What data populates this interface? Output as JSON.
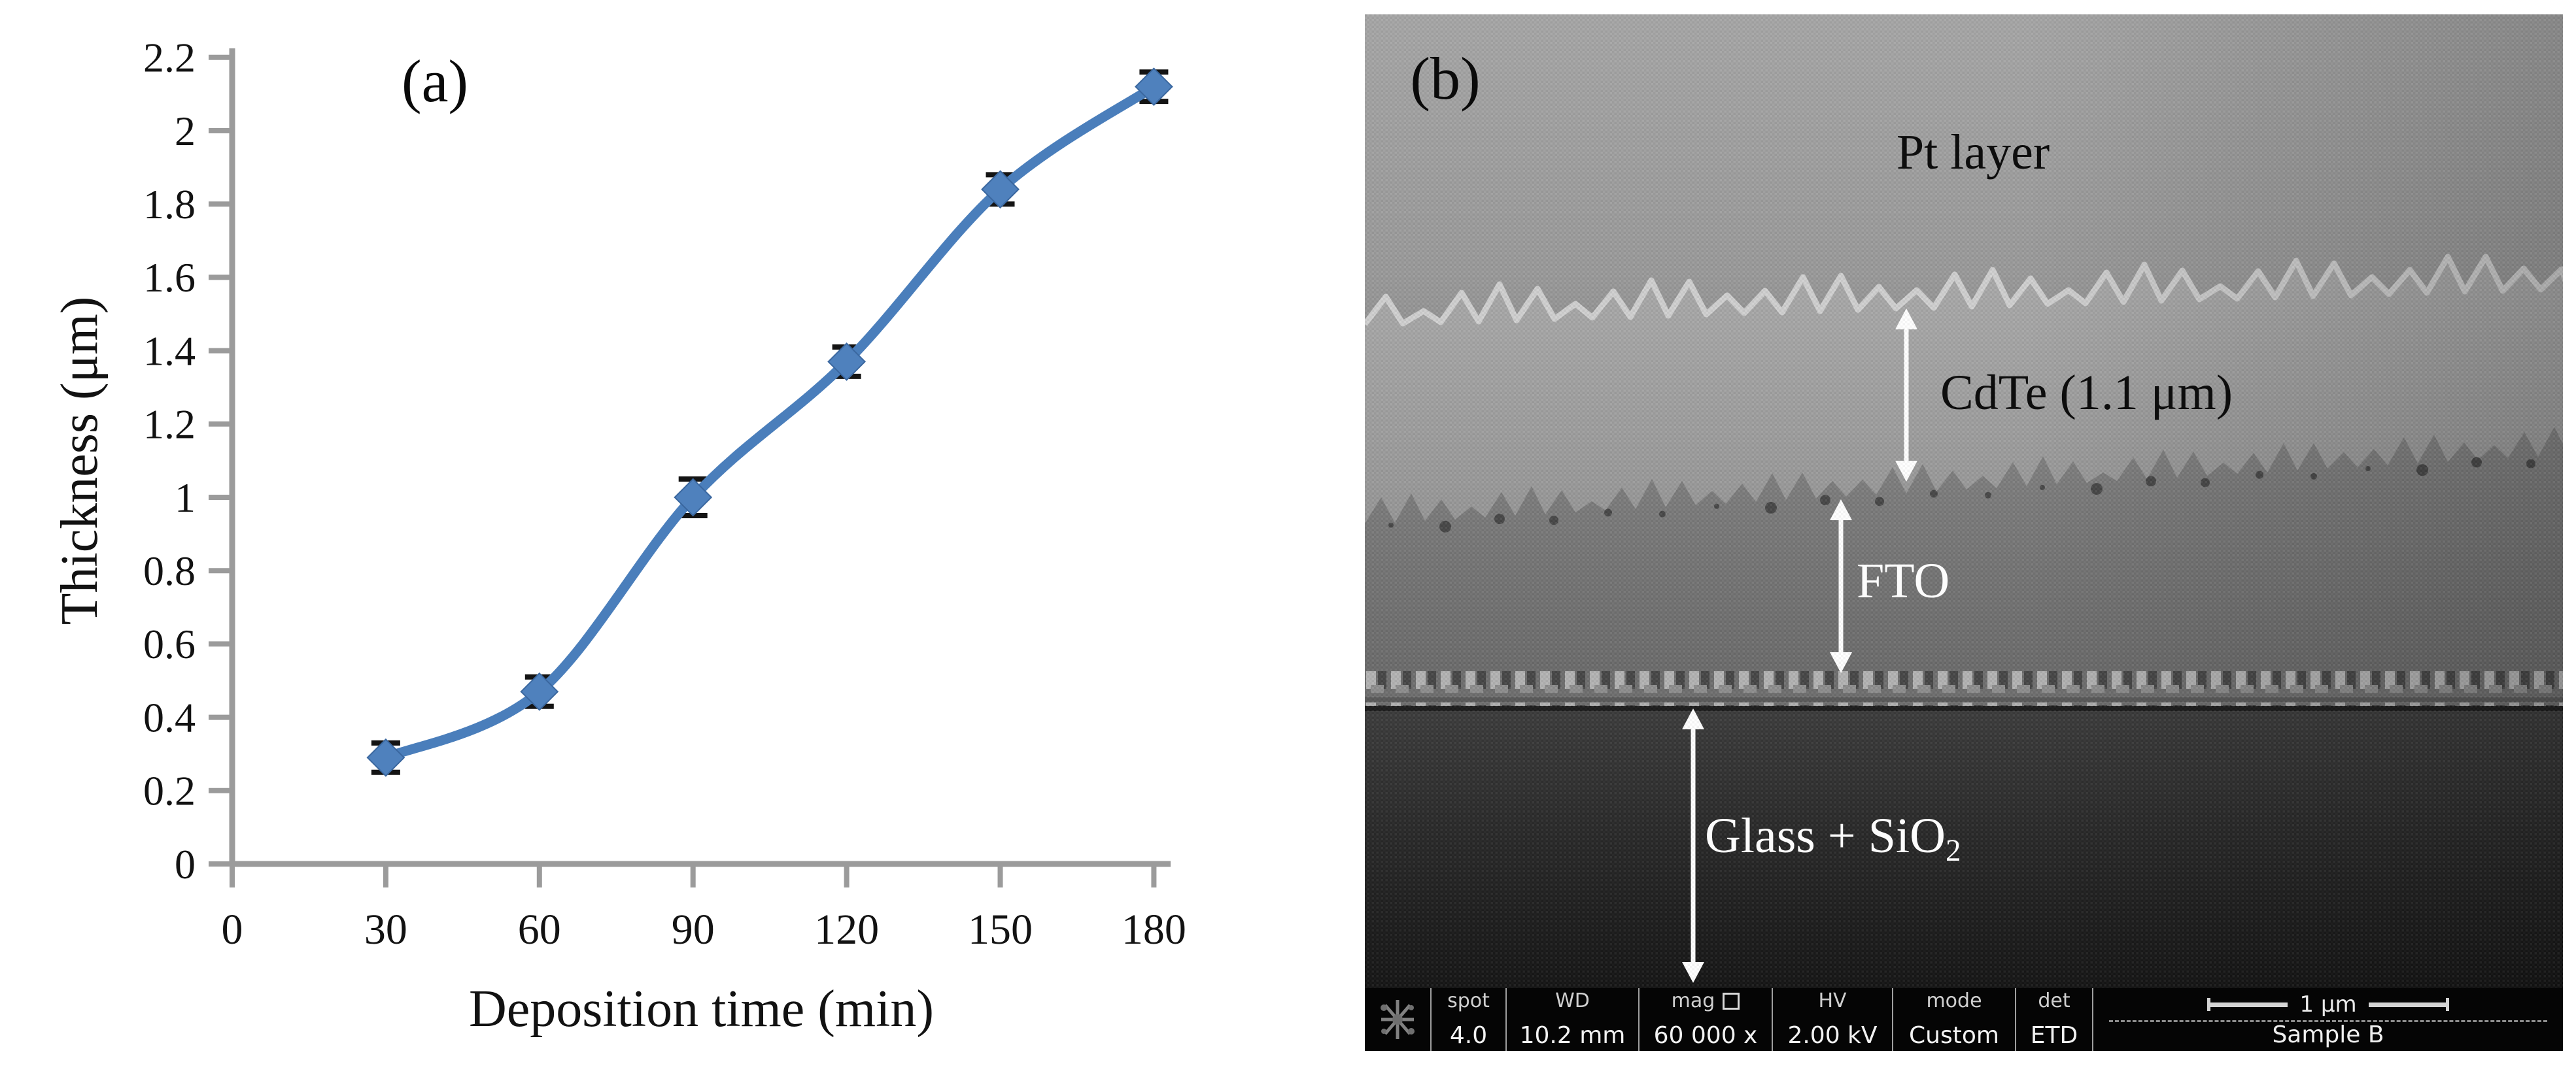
{
  "figure": {
    "panel_a_label": "(a)",
    "panel_b_label": "(b)"
  },
  "chart_data": {
    "type": "line",
    "title": "",
    "xlabel": "Deposition time (min)",
    "ylabel": "Thickness (μm)",
    "x": [
      30,
      60,
      90,
      120,
      150,
      180
    ],
    "y": [
      0.29,
      0.47,
      1.0,
      1.37,
      1.84,
      2.12
    ],
    "y_err": [
      0.04,
      0.04,
      0.05,
      0.04,
      0.04,
      0.04
    ],
    "xticks": [
      0,
      30,
      60,
      90,
      120,
      150,
      180
    ],
    "xtick_labels": [
      "0",
      "30",
      "60",
      "90",
      "120",
      "150",
      "180"
    ],
    "yticks": [
      0,
      0.2,
      0.4,
      0.6,
      0.8,
      1,
      1.2,
      1.4,
      1.6,
      1.8,
      2,
      2.2
    ],
    "ytick_labels": [
      "0",
      "0.2",
      "0.4",
      "0.6",
      "0.8",
      "1",
      "1.2",
      "1.4",
      "1.6",
      "1.8",
      "2",
      "2.2"
    ],
    "xlim": [
      0,
      183
    ],
    "ylim": [
      0,
      2.2
    ],
    "grid": false,
    "legend": false,
    "marker": "diamond",
    "line_color": "#4a7ebb",
    "marker_color": "#4f81bd",
    "marker_edge_color": "#3a679f",
    "error_color": "#141414",
    "axis_color": "#9b9b9b"
  },
  "sem": {
    "labels": {
      "pt": "Pt layer",
      "cdte": "CdTe (1.1 μm)",
      "fto": "FTO",
      "glass_main": "Glass + SiO",
      "glass_sub": "2"
    },
    "infobar": {
      "columns": [
        {
          "label": "spot",
          "value": "4.0"
        },
        {
          "label": "WD",
          "value": "10.2 mm"
        },
        {
          "label": "mag",
          "value": "60 000 x"
        },
        {
          "label": "HV",
          "value": "2.00 kV"
        },
        {
          "label": "mode",
          "value": "Custom"
        },
        {
          "label": "det",
          "value": "ETD"
        }
      ],
      "scale_label": "1 μm",
      "sample_label": "Sample B",
      "icons": {
        "logo": "starburst",
        "mag_frame": "square-outline"
      }
    }
  }
}
